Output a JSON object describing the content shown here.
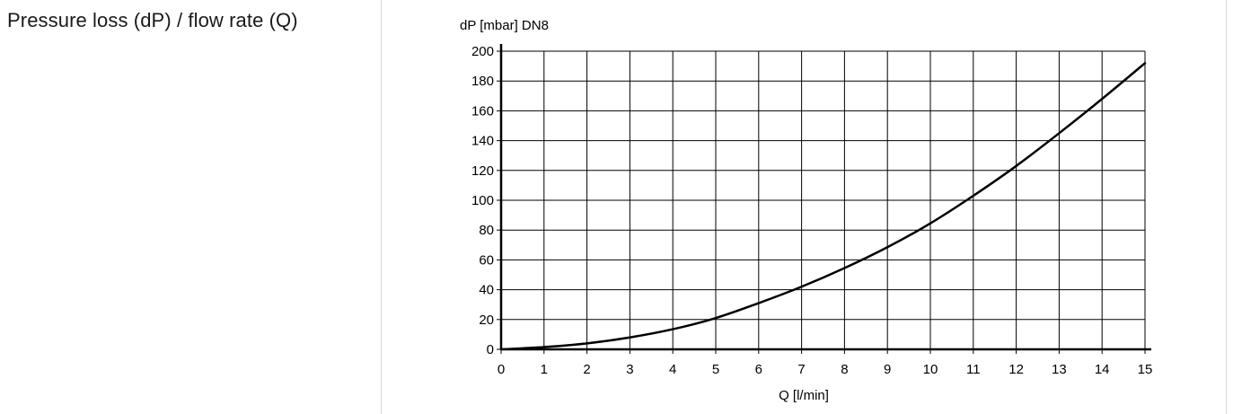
{
  "section": {
    "title": "Pressure loss (dP) / flow rate (Q)"
  },
  "chart_data": {
    "type": "line",
    "ylabel": "dP [mbar] DN8",
    "xlabel": "Q [l/min]",
    "xlim": [
      0,
      15
    ],
    "ylim": [
      0,
      200
    ],
    "x_ticks": [
      0,
      1,
      2,
      3,
      4,
      5,
      6,
      7,
      8,
      9,
      10,
      11,
      12,
      13,
      14,
      15
    ],
    "y_ticks": [
      0,
      20,
      40,
      60,
      80,
      100,
      120,
      140,
      160,
      180,
      200
    ],
    "grid": true,
    "series": [
      {
        "x": [
          0,
          1,
          2,
          3,
          4,
          5,
          6,
          7,
          8,
          9,
          10,
          11,
          12,
          13,
          14,
          15
        ],
        "y": [
          0,
          1.5,
          4,
          8,
          13.5,
          21,
          31,
          42,
          54.5,
          68.5,
          84.5,
          103,
          123,
          145,
          168,
          192
        ]
      }
    ],
    "colors": {
      "line": "#000000",
      "grid": "#000000",
      "axis": "#000000"
    }
  }
}
